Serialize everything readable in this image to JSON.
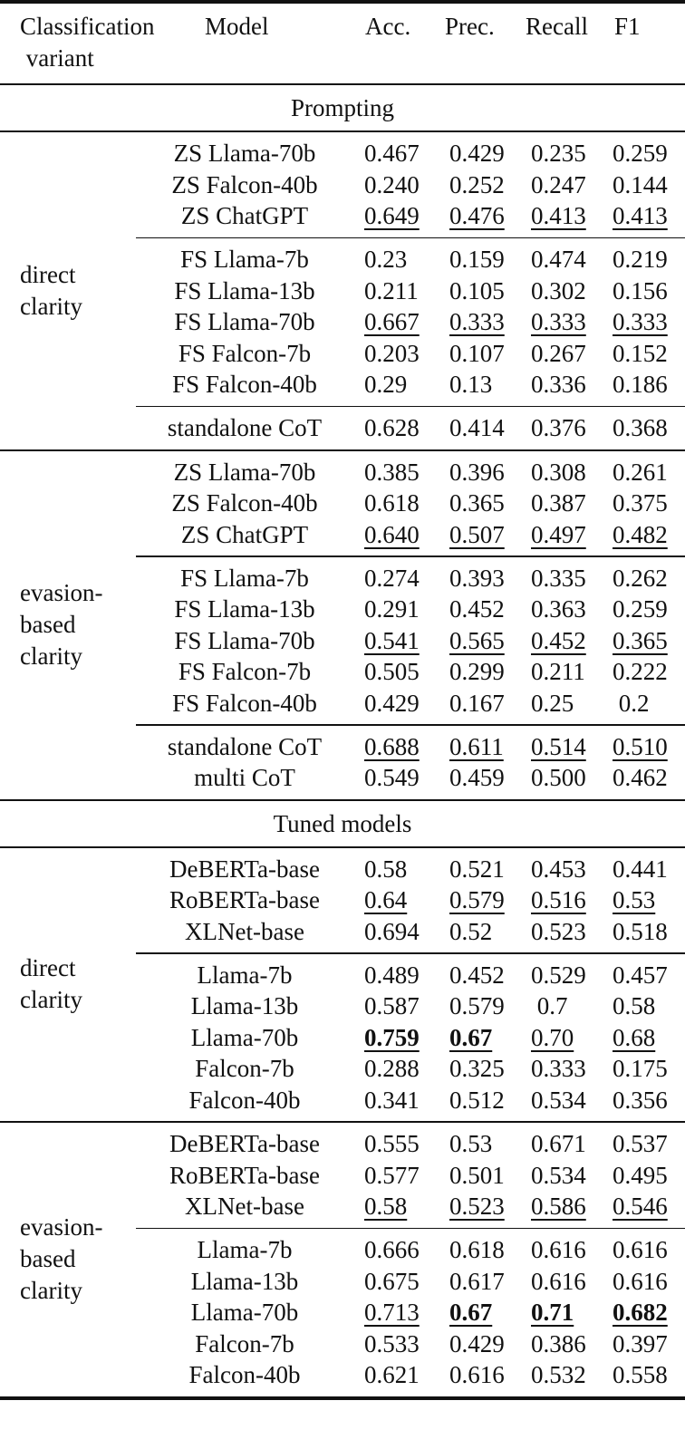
{
  "header": {
    "col_variant": "Classification\n variant",
    "col_model": "Model",
    "col_acc": "Acc.",
    "col_prec": "Prec.",
    "col_recall": "Recall",
    "col_f1": "F1"
  },
  "sections": [
    {
      "title": "Prompting",
      "groups": [
        {
          "label": "direct\nclarity",
          "subgroups": [
            [
              {
                "model": "ZS Llama-70b",
                "vals": [
                  "0.467",
                  "0.429",
                  "0.235",
                  "0.259"
                ],
                "u": [
                  0,
                  0,
                  0,
                  0
                ],
                "b": [
                  0,
                  0,
                  0,
                  0
                ]
              },
              {
                "model": "ZS Falcon-40b",
                "vals": [
                  "0.240",
                  "0.252",
                  "0.247",
                  "0.144"
                ],
                "u": [
                  0,
                  0,
                  0,
                  0
                ],
                "b": [
                  0,
                  0,
                  0,
                  0
                ]
              },
              {
                "model": "ZS ChatGPT",
                "vals": [
                  "0.649",
                  "0.476",
                  "0.413",
                  "0.413"
                ],
                "u": [
                  1,
                  1,
                  1,
                  1
                ],
                "b": [
                  0,
                  0,
                  0,
                  0
                ]
              }
            ],
            [
              {
                "model": "FS Llama-7b",
                "vals": [
                  "0.23",
                  "0.159",
                  "0.474",
                  "0.219"
                ],
                "u": [
                  0,
                  0,
                  0,
                  0
                ],
                "b": [
                  0,
                  0,
                  0,
                  0
                ]
              },
              {
                "model": "FS Llama-13b",
                "vals": [
                  "0.211",
                  "0.105",
                  "0.302",
                  "0.156"
                ],
                "u": [
                  0,
                  0,
                  0,
                  0
                ],
                "b": [
                  0,
                  0,
                  0,
                  0
                ]
              },
              {
                "model": "FS Llama-70b",
                "vals": [
                  "0.667",
                  "0.333",
                  "0.333",
                  "0.333"
                ],
                "u": [
                  1,
                  1,
                  1,
                  1
                ],
                "b": [
                  0,
                  0,
                  0,
                  0
                ]
              },
              {
                "model": "FS Falcon-7b",
                "vals": [
                  "0.203",
                  "0.107",
                  "0.267",
                  "0.152"
                ],
                "u": [
                  0,
                  0,
                  0,
                  0
                ],
                "b": [
                  0,
                  0,
                  0,
                  0
                ]
              },
              {
                "model": "FS Falcon-40b",
                "vals": [
                  "0.29",
                  "0.13",
                  "0.336",
                  "0.186"
                ],
                "u": [
                  0,
                  0,
                  0,
                  0
                ],
                "b": [
                  0,
                  0,
                  0,
                  0
                ]
              }
            ],
            [
              {
                "model": "standalone CoT",
                "vals": [
                  "0.628",
                  "0.414",
                  "0.376",
                  "0.368"
                ],
                "u": [
                  0,
                  0,
                  0,
                  0
                ],
                "b": [
                  0,
                  0,
                  0,
                  0
                ]
              }
            ]
          ]
        },
        {
          "label": "evasion-\nbased\nclarity",
          "subgroups": [
            [
              {
                "model": "ZS Llama-70b",
                "vals": [
                  "0.385",
                  "0.396",
                  "0.308",
                  "0.261"
                ],
                "u": [
                  0,
                  0,
                  0,
                  0
                ],
                "b": [
                  0,
                  0,
                  0,
                  0
                ]
              },
              {
                "model": "ZS Falcon-40b",
                "vals": [
                  "0.618",
                  "0.365",
                  "0.387",
                  "0.375"
                ],
                "u": [
                  0,
                  0,
                  0,
                  0
                ],
                "b": [
                  0,
                  0,
                  0,
                  0
                ]
              },
              {
                "model": "ZS ChatGPT",
                "vals": [
                  "0.640",
                  "0.507",
                  "0.497",
                  "0.482"
                ],
                "u": [
                  1,
                  1,
                  1,
                  1
                ],
                "b": [
                  0,
                  0,
                  0,
                  0
                ]
              }
            ],
            [
              {
                "model": "FS Llama-7b",
                "vals": [
                  "0.274",
                  "0.393",
                  "0.335",
                  "0.262"
                ],
                "u": [
                  0,
                  0,
                  0,
                  0
                ],
                "b": [
                  0,
                  0,
                  0,
                  0
                ]
              },
              {
                "model": "FS Llama-13b",
                "vals": [
                  "0.291",
                  "0.452",
                  "0.363",
                  "0.259"
                ],
                "u": [
                  0,
                  0,
                  0,
                  0
                ],
                "b": [
                  0,
                  0,
                  0,
                  0
                ]
              },
              {
                "model": "FS Llama-70b",
                "vals": [
                  "0.541",
                  "0.565",
                  "0.452",
                  "0.365"
                ],
                "u": [
                  1,
                  1,
                  1,
                  1
                ],
                "b": [
                  0,
                  0,
                  0,
                  0
                ]
              },
              {
                "model": "FS Falcon-7b",
                "vals": [
                  "0.505",
                  "0.299",
                  "0.211",
                  "0.222"
                ],
                "u": [
                  0,
                  0,
                  0,
                  0
                ],
                "b": [
                  0,
                  0,
                  0,
                  0
                ]
              },
              {
                "model": "FS Falcon-40b",
                "vals": [
                  "0.429",
                  "0.167",
                  "0.25",
                  " 0.2"
                ],
                "u": [
                  0,
                  0,
                  0,
                  0
                ],
                "b": [
                  0,
                  0,
                  0,
                  0
                ]
              }
            ],
            [
              {
                "model": "standalone CoT",
                "vals": [
                  "0.688",
                  "0.611",
                  "0.514",
                  "0.510"
                ],
                "u": [
                  1,
                  1,
                  1,
                  1
                ],
                "b": [
                  0,
                  0,
                  0,
                  0
                ]
              },
              {
                "model": "multi CoT",
                "vals": [
                  "0.549",
                  "0.459",
                  "0.500",
                  "0.462"
                ],
                "u": [
                  0,
                  0,
                  0,
                  0
                ],
                "b": [
                  0,
                  0,
                  0,
                  0
                ]
              }
            ]
          ]
        }
      ]
    },
    {
      "title": "Tuned models",
      "groups": [
        {
          "label": "direct\nclarity",
          "subgroups": [
            [
              {
                "model": "DeBERTa-base",
                "vals": [
                  "0.58",
                  "0.521",
                  "0.453",
                  "0.441"
                ],
                "u": [
                  0,
                  0,
                  0,
                  0
                ],
                "b": [
                  0,
                  0,
                  0,
                  0
                ]
              },
              {
                "model": "RoBERTa-base",
                "vals": [
                  "0.64",
                  "0.579",
                  "0.516",
                  "0.53"
                ],
                "u": [
                  1,
                  1,
                  1,
                  1
                ],
                "b": [
                  0,
                  0,
                  0,
                  0
                ]
              },
              {
                "model": "XLNet-base",
                "vals": [
                  "0.694",
                  "0.52",
                  "0.523",
                  "0.518"
                ],
                "u": [
                  0,
                  0,
                  0,
                  0
                ],
                "b": [
                  0,
                  0,
                  0,
                  0
                ]
              }
            ],
            [
              {
                "model": "Llama-7b",
                "vals": [
                  "0.489",
                  "0.452",
                  "0.529",
                  "0.457"
                ],
                "u": [
                  0,
                  0,
                  0,
                  0
                ],
                "b": [
                  0,
                  0,
                  0,
                  0
                ]
              },
              {
                "model": "Llama-13b",
                "vals": [
                  "0.587",
                  "0.579",
                  " 0.7",
                  "0.58"
                ],
                "u": [
                  0,
                  0,
                  0,
                  0
                ],
                "b": [
                  0,
                  0,
                  0,
                  0
                ]
              },
              {
                "model": "Llama-70b",
                "vals": [
                  "0.759",
                  "0.67",
                  "0.70",
                  "0.68"
                ],
                "u": [
                  1,
                  1,
                  1,
                  1
                ],
                "b": [
                  1,
                  1,
                  0,
                  0
                ]
              },
              {
                "model": "Falcon-7b",
                "vals": [
                  "0.288",
                  "0.325",
                  "0.333",
                  "0.175"
                ],
                "u": [
                  0,
                  0,
                  0,
                  0
                ],
                "b": [
                  0,
                  0,
                  0,
                  0
                ]
              },
              {
                "model": "Falcon-40b",
                "vals": [
                  "0.341",
                  "0.512",
                  "0.534",
                  "0.356"
                ],
                "u": [
                  0,
                  0,
                  0,
                  0
                ],
                "b": [
                  0,
                  0,
                  0,
                  0
                ]
              }
            ]
          ]
        },
        {
          "label": "evasion-\nbased\nclarity",
          "subgroups": [
            [
              {
                "model": "DeBERTa-base",
                "vals": [
                  "0.555",
                  "0.53",
                  "0.671",
                  "0.537"
                ],
                "u": [
                  0,
                  0,
                  0,
                  0
                ],
                "b": [
                  0,
                  0,
                  0,
                  0
                ]
              },
              {
                "model": "RoBERTa-base",
                "vals": [
                  "0.577",
                  "0.501",
                  "0.534",
                  "0.495"
                ],
                "u": [
                  0,
                  0,
                  0,
                  0
                ],
                "b": [
                  0,
                  0,
                  0,
                  0
                ]
              },
              {
                "model": "XLNet-base",
                "vals": [
                  "0.58",
                  "0.523",
                  "0.586",
                  "0.546"
                ],
                "u": [
                  1,
                  1,
                  1,
                  1
                ],
                "b": [
                  0,
                  0,
                  0,
                  0
                ]
              }
            ],
            [
              {
                "model": "Llama-7b",
                "vals": [
                  "0.666",
                  "0.618",
                  "0.616",
                  "0.616"
                ],
                "u": [
                  0,
                  0,
                  0,
                  0
                ],
                "b": [
                  0,
                  0,
                  0,
                  0
                ]
              },
              {
                "model": "Llama-13b",
                "vals": [
                  "0.675",
                  "0.617",
                  "0.616",
                  "0.616"
                ],
                "u": [
                  0,
                  0,
                  0,
                  0
                ],
                "b": [
                  0,
                  0,
                  0,
                  0
                ]
              },
              {
                "model": "Llama-70b",
                "vals": [
                  "0.713",
                  "0.67",
                  "0.71",
                  "0.682"
                ],
                "u": [
                  1,
                  1,
                  1,
                  1
                ],
                "b": [
                  0,
                  1,
                  1,
                  1
                ]
              },
              {
                "model": "Falcon-7b",
                "vals": [
                  "0.533",
                  "0.429",
                  "0.386",
                  "0.397"
                ],
                "u": [
                  0,
                  0,
                  0,
                  0
                ],
                "b": [
                  0,
                  0,
                  0,
                  0
                ]
              },
              {
                "model": "Falcon-40b",
                "vals": [
                  "0.621",
                  "0.616",
                  "0.532",
                  "0.558"
                ],
                "u": [
                  0,
                  0,
                  0,
                  0
                ],
                "b": [
                  0,
                  0,
                  0,
                  0
                ]
              }
            ]
          ]
        }
      ]
    }
  ]
}
